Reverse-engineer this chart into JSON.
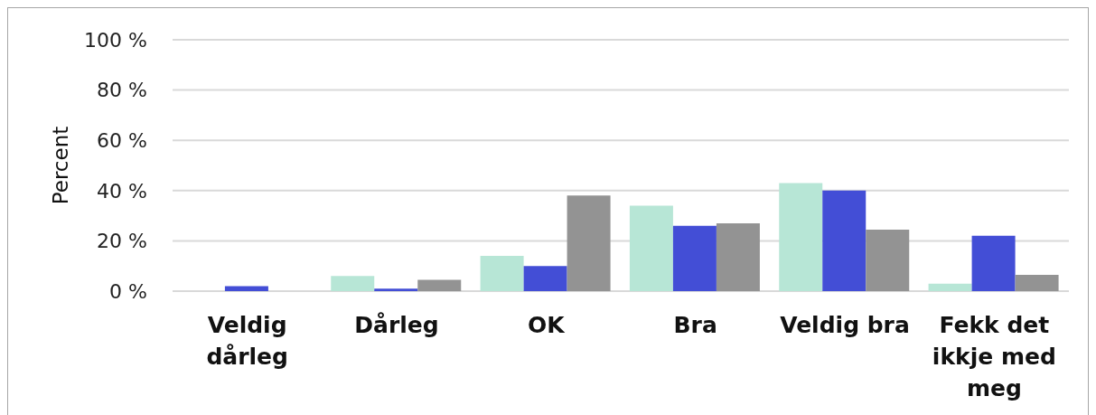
{
  "chart_data": {
    "type": "bar",
    "ylabel": "Percent",
    "categories": [
      "Veldig dårleg",
      "Dårleg",
      "OK",
      "Bra",
      "Veldig bra",
      "Fekk det ikkje med meg"
    ],
    "series": [
      {
        "color": "#b7e6d6",
        "values": [
          0,
          6,
          14,
          34,
          43,
          3
        ]
      },
      {
        "color": "#434ed6",
        "values": [
          2,
          1,
          10,
          26,
          40,
          22
        ]
      },
      {
        "color": "#939393",
        "values": [
          0,
          4.5,
          38,
          27,
          24.5,
          6.5
        ]
      }
    ],
    "ylim": [
      0,
      100
    ],
    "yticks": [
      {
        "value": 0,
        "label": "0 %"
      },
      {
        "value": 20,
        "label": "20 %"
      },
      {
        "value": 40,
        "label": "40 %"
      },
      {
        "value": 60,
        "label": "60 %"
      },
      {
        "value": 80,
        "label": "80 %"
      },
      {
        "value": 100,
        "label": "100 %"
      }
    ],
    "grid": "y"
  }
}
